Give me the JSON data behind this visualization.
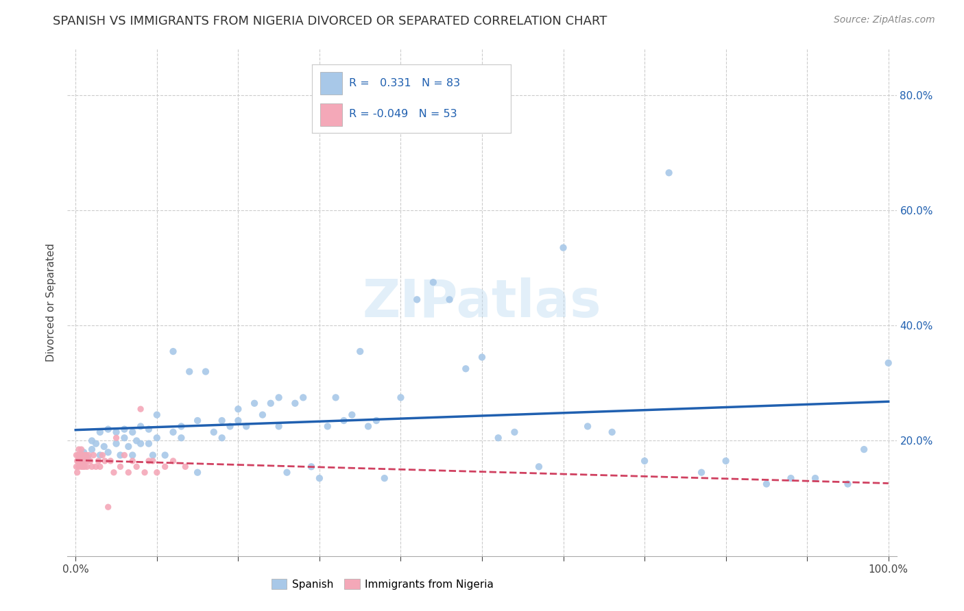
{
  "title": "SPANISH VS IMMIGRANTS FROM NIGERIA DIVORCED OR SEPARATED CORRELATION CHART",
  "source": "Source: ZipAtlas.com",
  "ylabel": "Divorced or Separated",
  "watermark": "ZIPatlas",
  "blue_R": 0.331,
  "blue_N": 83,
  "pink_R": -0.049,
  "pink_N": 53,
  "xlim": [
    -0.01,
    1.01
  ],
  "ylim": [
    0.0,
    0.88
  ],
  "xticks": [
    0.0,
    0.1,
    0.2,
    0.3,
    0.4,
    0.5,
    0.6,
    0.7,
    0.8,
    0.9,
    1.0
  ],
  "yticks": [
    0.2,
    0.4,
    0.6,
    0.8
  ],
  "ytick_labels": [
    "20.0%",
    "40.0%",
    "60.0%",
    "80.0%"
  ],
  "blue_x": [
    0.005,
    0.01,
    0.015,
    0.02,
    0.02,
    0.025,
    0.03,
    0.03,
    0.035,
    0.04,
    0.04,
    0.05,
    0.05,
    0.055,
    0.06,
    0.06,
    0.065,
    0.07,
    0.07,
    0.075,
    0.08,
    0.08,
    0.09,
    0.09,
    0.095,
    0.1,
    0.1,
    0.11,
    0.12,
    0.12,
    0.13,
    0.13,
    0.14,
    0.15,
    0.15,
    0.16,
    0.17,
    0.18,
    0.18,
    0.19,
    0.2,
    0.2,
    0.21,
    0.22,
    0.23,
    0.24,
    0.25,
    0.25,
    0.26,
    0.27,
    0.28,
    0.29,
    0.3,
    0.31,
    0.32,
    0.33,
    0.34,
    0.35,
    0.36,
    0.37,
    0.38,
    0.4,
    0.42,
    0.44,
    0.46,
    0.48,
    0.5,
    0.52,
    0.54,
    0.57,
    0.6,
    0.63,
    0.66,
    0.7,
    0.73,
    0.77,
    0.8,
    0.85,
    0.88,
    0.91,
    0.95,
    0.97,
    1.0
  ],
  "blue_y": [
    0.175,
    0.18,
    0.17,
    0.2,
    0.185,
    0.195,
    0.175,
    0.215,
    0.19,
    0.18,
    0.22,
    0.195,
    0.215,
    0.175,
    0.205,
    0.22,
    0.19,
    0.175,
    0.215,
    0.2,
    0.195,
    0.225,
    0.195,
    0.22,
    0.175,
    0.205,
    0.245,
    0.175,
    0.355,
    0.215,
    0.205,
    0.225,
    0.32,
    0.145,
    0.235,
    0.32,
    0.215,
    0.205,
    0.235,
    0.225,
    0.235,
    0.255,
    0.225,
    0.265,
    0.245,
    0.265,
    0.225,
    0.275,
    0.145,
    0.265,
    0.275,
    0.155,
    0.135,
    0.225,
    0.275,
    0.235,
    0.245,
    0.355,
    0.225,
    0.235,
    0.135,
    0.275,
    0.445,
    0.475,
    0.445,
    0.325,
    0.345,
    0.205,
    0.215,
    0.155,
    0.535,
    0.225,
    0.215,
    0.165,
    0.665,
    0.145,
    0.165,
    0.125,
    0.135,
    0.135,
    0.125,
    0.185,
    0.335
  ],
  "pink_x": [
    0.001,
    0.001,
    0.002,
    0.002,
    0.003,
    0.003,
    0.004,
    0.004,
    0.005,
    0.005,
    0.006,
    0.006,
    0.007,
    0.007,
    0.008,
    0.008,
    0.009,
    0.009,
    0.01,
    0.01,
    0.011,
    0.011,
    0.012,
    0.012,
    0.013,
    0.014,
    0.015,
    0.016,
    0.018,
    0.02,
    0.022,
    0.025,
    0.028,
    0.03,
    0.033,
    0.036,
    0.04,
    0.043,
    0.047,
    0.05,
    0.055,
    0.06,
    0.065,
    0.07,
    0.075,
    0.08,
    0.085,
    0.09,
    0.095,
    0.1,
    0.11,
    0.12,
    0.135
  ],
  "pink_y": [
    0.175,
    0.155,
    0.165,
    0.145,
    0.175,
    0.165,
    0.185,
    0.155,
    0.175,
    0.165,
    0.175,
    0.165,
    0.185,
    0.155,
    0.175,
    0.165,
    0.175,
    0.155,
    0.175,
    0.165,
    0.175,
    0.155,
    0.175,
    0.165,
    0.175,
    0.155,
    0.165,
    0.175,
    0.165,
    0.155,
    0.175,
    0.155,
    0.165,
    0.155,
    0.175,
    0.165,
    0.085,
    0.165,
    0.145,
    0.205,
    0.155,
    0.175,
    0.145,
    0.165,
    0.155,
    0.255,
    0.145,
    0.165,
    0.165,
    0.145,
    0.155,
    0.165,
    0.155
  ],
  "blue_color": "#a8c8e8",
  "pink_color": "#f4a8b8",
  "blue_line_color": "#2060b0",
  "pink_line_color": "#d04060",
  "background_color": "#ffffff",
  "grid_color": "#cccccc",
  "legend_blue_label": "Spanish",
  "legend_pink_label": "Immigrants from Nigeria",
  "title_fontsize": 13,
  "label_fontsize": 11,
  "tick_fontsize": 11,
  "source_fontsize": 10
}
